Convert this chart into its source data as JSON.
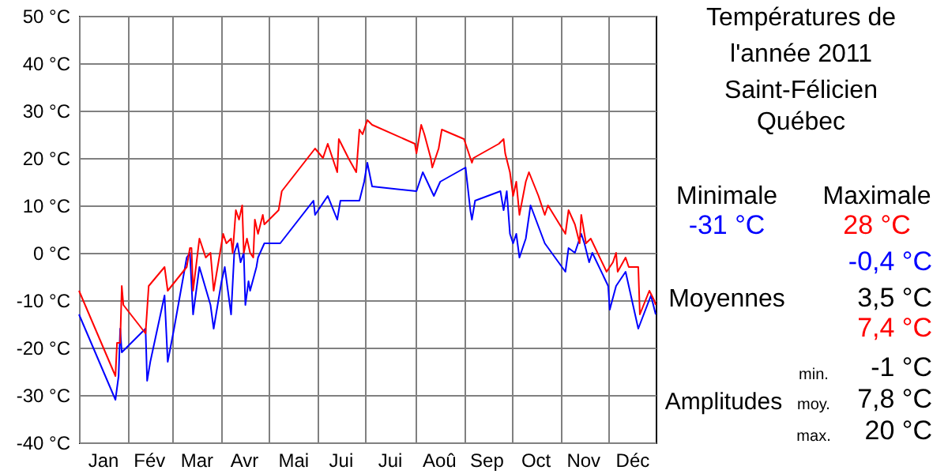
{
  "chart_data": {
    "type": "line",
    "title": "Températures de l'année 2011",
    "subtitle": "Saint-Félicien Québec",
    "series": [
      {
        "color": "#0000ff",
        "x": [
          "2011-01-01",
          "2011-01-24",
          "2011-01-26",
          "2011-01-27",
          "2011-01-28",
          "2011-02-12",
          "2011-02-13",
          "2011-02-15",
          "2011-02-24",
          "2011-02-26",
          "2011-03-02",
          "2011-03-10",
          "2011-03-12",
          "2011-03-14",
          "2011-03-16",
          "2011-03-18",
          "2011-03-25",
          "2011-03-27",
          "2011-04-01",
          "2011-04-03",
          "2011-04-05",
          "2011-04-07",
          "2011-04-09",
          "2011-04-11",
          "2011-04-13",
          "2011-04-15",
          "2011-04-16",
          "2011-04-18",
          "2011-04-19",
          "2011-04-23",
          "2011-04-24",
          "2011-04-28",
          "2011-05-08",
          "2011-05-29",
          "2011-05-30",
          "2011-06-07",
          "2011-06-13",
          "2011-06-15",
          "2011-06-27",
          "2011-06-30",
          "2011-07-02",
          "2011-07-05",
          "2011-08-02",
          "2011-08-06",
          "2011-08-13",
          "2011-08-17",
          "2011-09-02",
          "2011-09-05",
          "2011-09-06",
          "2011-09-08",
          "2011-09-24",
          "2011-09-26",
          "2011-09-28",
          "2011-09-30",
          "2011-10-02",
          "2011-10-04",
          "2011-10-06",
          "2011-10-10",
          "2011-10-13",
          "2011-10-22",
          "2011-11-04",
          "2011-11-06",
          "2011-11-10",
          "2011-11-14",
          "2011-11-16",
          "2011-11-19",
          "2011-11-21",
          "2011-12-01",
          "2011-12-02",
          "2011-12-06",
          "2011-12-12",
          "2011-12-20",
          "2011-12-28",
          "2011-12-31"
        ],
        "values": [
          -13,
          -31,
          -26,
          -16,
          -21,
          -16,
          -27,
          -23,
          -9,
          -23,
          -16,
          -1,
          0,
          -13,
          -8,
          -3,
          -11,
          -16,
          -6,
          -3,
          -8,
          -13,
          0,
          2,
          -2,
          0,
          -11,
          -6,
          -8,
          -3,
          -1,
          2,
          2,
          11,
          8,
          12,
          7,
          11,
          11,
          15,
          19,
          14,
          13,
          17,
          12,
          15,
          18,
          9,
          7,
          11,
          13,
          9,
          13,
          4,
          2,
          4,
          -1,
          3,
          10,
          2,
          -4,
          1,
          0,
          4,
          2,
          -2,
          0,
          -7,
          -12,
          -7,
          -4,
          -16,
          -9,
          -13
        ]
      },
      {
        "color": "#ff0000",
        "x": [
          "2011-01-01",
          "2011-01-24",
          "2011-01-25",
          "2011-01-27",
          "2011-01-28",
          "2011-01-29",
          "2011-02-12",
          "2011-02-13",
          "2011-02-14",
          "2011-02-24",
          "2011-02-26",
          "2011-03-10",
          "2011-03-12",
          "2011-03-13",
          "2011-03-14",
          "2011-03-18",
          "2011-03-22",
          "2011-03-25",
          "2011-03-27",
          "2011-03-31",
          "2011-04-02",
          "2011-04-04",
          "2011-04-07",
          "2011-04-08",
          "2011-04-10",
          "2011-04-12",
          "2011-04-14",
          "2011-04-15",
          "2011-04-17",
          "2011-04-19",
          "2011-04-21",
          "2011-04-22",
          "2011-04-24",
          "2011-04-27",
          "2011-04-28",
          "2011-05-07",
          "2011-05-09",
          "2011-05-30",
          "2011-06-04",
          "2011-06-07",
          "2011-06-13",
          "2011-06-14",
          "2011-06-20",
          "2011-06-25",
          "2011-06-27",
          "2011-06-29",
          "2011-07-02",
          "2011-07-05",
          "2011-08-01",
          "2011-08-02",
          "2011-08-05",
          "2011-08-07",
          "2011-08-11",
          "2011-08-12",
          "2011-08-16",
          "2011-08-18",
          "2011-09-01",
          "2011-09-03",
          "2011-09-06",
          "2011-09-07",
          "2011-09-23",
          "2011-09-26",
          "2011-09-27",
          "2011-09-30",
          "2011-10-02",
          "2011-10-04",
          "2011-10-06",
          "2011-10-10",
          "2011-10-12",
          "2011-10-18",
          "2011-10-22",
          "2011-10-24",
          "2011-11-04",
          "2011-11-06",
          "2011-11-10",
          "2011-11-13",
          "2011-11-14",
          "2011-11-17",
          "2011-11-20",
          "2011-11-30",
          "2011-12-04",
          "2011-12-06",
          "2011-12-07",
          "2011-12-12",
          "2011-12-14",
          "2011-12-20",
          "2011-12-21",
          "2011-12-27",
          "2011-12-30",
          "2011-12-31"
        ],
        "values": [
          -8,
          -26,
          -19,
          -19,
          -7,
          -11,
          -17,
          -12,
          -7,
          -3,
          -8,
          -3,
          1,
          1,
          -8,
          3,
          -1,
          0,
          -8,
          0,
          4,
          2,
          3,
          0,
          9,
          7,
          10,
          0,
          3,
          0,
          -1,
          7,
          4,
          8,
          6,
          9,
          13,
          22,
          20,
          23,
          17,
          24,
          20,
          17,
          26,
          25,
          28,
          27,
          23,
          21,
          27,
          25,
          20,
          18,
          22,
          26,
          24,
          22,
          19,
          20,
          23,
          24,
          21,
          17,
          12,
          15,
          8,
          15,
          17,
          12,
          8,
          10,
          4,
          9,
          6,
          2,
          8,
          2,
          3,
          -4,
          -2,
          0,
          -4,
          -1,
          -3,
          -3,
          -13,
          -8,
          -10,
          -11
        ]
      }
    ],
    "xlim": [
      "2011-01-01",
      "2011-12-31"
    ],
    "xticks": [
      {
        "value": "2011-01-01",
        "label": null
      },
      {
        "value": "2011-02-01",
        "label": null
      },
      {
        "value": "2011-03-01",
        "label": null
      },
      {
        "value": "2011-04-01",
        "label": null
      },
      {
        "value": "2011-05-01",
        "label": null
      },
      {
        "value": "2011-06-01",
        "label": null
      },
      {
        "value": "2011-07-01",
        "label": null
      },
      {
        "value": "2011-08-01",
        "label": null
      },
      {
        "value": "2011-09-01",
        "label": null
      },
      {
        "value": "2011-10-01",
        "label": null
      },
      {
        "value": "2011-11-01",
        "label": null
      },
      {
        "value": "2011-12-01",
        "label": null
      },
      {
        "value": "2011-01-16",
        "label": "Jan"
      },
      {
        "value": "2011-02-14",
        "label": "Fév"
      },
      {
        "value": "2011-03-16",
        "label": "Mar"
      },
      {
        "value": "2011-04-15",
        "label": "Avr"
      },
      {
        "value": "2011-05-16",
        "label": "Mai"
      },
      {
        "value": "2011-06-15",
        "label": "Jui"
      },
      {
        "value": "2011-07-16",
        "label": "Jui"
      },
      {
        "value": "2011-08-16",
        "label": "Aoû"
      },
      {
        "value": "2011-09-15",
        "label": "Sep"
      },
      {
        "value": "2011-10-16",
        "label": "Oct"
      },
      {
        "value": "2011-11-15",
        "label": "Nov"
      },
      {
        "value": "2011-12-16",
        "label": "Déc"
      }
    ],
    "ylim": [
      -40,
      50
    ],
    "yticks": [
      {
        "value": -40,
        "label": "-40 °C"
      },
      {
        "value": -30,
        "label": "-30 °C"
      },
      {
        "value": -20,
        "label": "-20 °C"
      },
      {
        "value": -10,
        "label": "-10 °C"
      },
      {
        "value": 0,
        "label": "0 °C"
      },
      {
        "value": 10,
        "label": "10 °C"
      },
      {
        "value": 20,
        "label": "20 °C"
      },
      {
        "value": 30,
        "label": "30 °C"
      },
      {
        "value": 40,
        "label": "40 °C"
      },
      {
        "value": 50,
        "label": "50 °C"
      }
    ],
    "grid": true,
    "line_style": "solid",
    "marker": "none",
    "annotations": [
      "Minimale",
      "Maximale",
      "-31 °C",
      "28 °C",
      "-0,4 °C",
      "Moyennes",
      "3,5 °C",
      "7,4 °C",
      "min.",
      "-1 °C",
      "Amplitudes",
      "moy.",
      "7,8 °C",
      "max.",
      "20 °C"
    ]
  }
}
